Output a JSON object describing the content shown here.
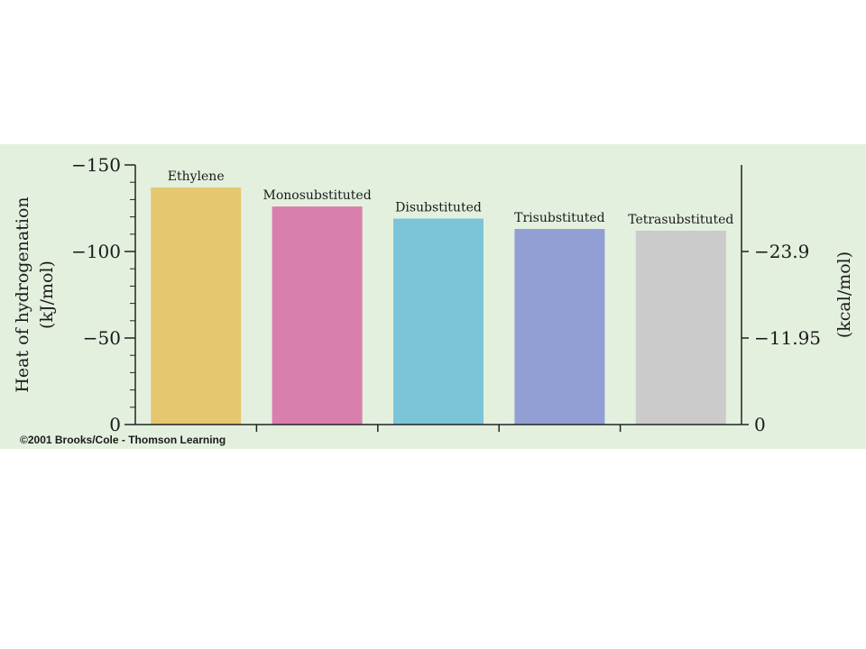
{
  "chart_data": {
    "type": "bar",
    "categories": [
      "Ethylene",
      "Monosubstituted",
      "Disubstituted",
      "Trisubstituted",
      "Tetrasubstituted"
    ],
    "values": [
      -137,
      -126,
      -119,
      -113,
      -112
    ],
    "ylabel": "Heat of hydrogenation",
    "ylabel_unit": "(kJ/mol)",
    "ylim": [
      0,
      -150
    ],
    "yticks": [
      {
        "value": -150,
        "label": "−150"
      },
      {
        "value": -100,
        "label": "−100"
      },
      {
        "value": -50,
        "label": "−50"
      },
      {
        "value": 0,
        "label": "0"
      }
    ],
    "y2label": "(kcal/mol)",
    "y2ticks": [
      {
        "value": -100,
        "label": "−23.9"
      },
      {
        "value": -50,
        "label": "−11.95"
      },
      {
        "value": 0,
        "label": "0"
      }
    ],
    "colors": [
      "#e5c76f",
      "#d97fad",
      "#7cc5d9",
      "#929fd4",
      "#cbcbcb"
    ],
    "background": "#e3f0de",
    "grid": false,
    "legend": "none"
  },
  "copyright": "©2001 Brooks/Cole - Thomson Learning"
}
